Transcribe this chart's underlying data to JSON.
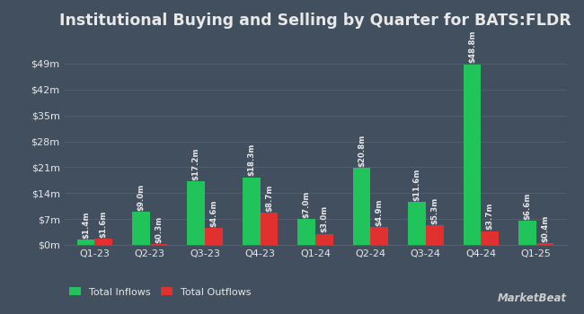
{
  "title": "Institutional Buying and Selling by Quarter for BATS:FLDR",
  "quarters": [
    "Q1-23",
    "Q2-23",
    "Q3-23",
    "Q4-23",
    "Q1-24",
    "Q2-24",
    "Q3-24",
    "Q4-24",
    "Q1-25"
  ],
  "inflows": [
    1.4,
    9.0,
    17.2,
    18.3,
    7.0,
    20.8,
    11.6,
    48.8,
    6.6
  ],
  "outflows": [
    1.6,
    0.3,
    4.6,
    8.7,
    3.0,
    4.9,
    5.3,
    3.7,
    0.4
  ],
  "inflow_labels": [
    "$1.4m",
    "$9.0m",
    "$17.2m",
    "$18.3m",
    "$7.0m",
    "$20.8m",
    "$11.6m",
    "$48.8m",
    "$6.6m"
  ],
  "outflow_labels": [
    "$1.6m",
    "$0.3m",
    "$4.6m",
    "$8.7m",
    "$3.0m",
    "$4.9m",
    "$5.3m",
    "$3.7m",
    "$0.4m"
  ],
  "inflow_color": "#21c45a",
  "outflow_color": "#e03030",
  "bg_color": "#424f5e",
  "plot_bg_color": "#424f5e",
  "grid_color": "#556070",
  "text_color": "#e8e8e8",
  "title_fontsize": 12.5,
  "label_fontsize": 6.2,
  "tick_fontsize": 8,
  "legend_fontsize": 8,
  "yticks": [
    0,
    7,
    14,
    21,
    28,
    35,
    42,
    49
  ],
  "ytick_labels": [
    "$0m",
    "$7m",
    "$14m",
    "$21m",
    "$28m",
    "$35m",
    "$42m",
    "$49m"
  ],
  "ylim": [
    0,
    56
  ],
  "bar_width": 0.32,
  "legend_labels": [
    "Total Inflows",
    "Total Outflows"
  ],
  "marketbeat_color": "#cccccc"
}
